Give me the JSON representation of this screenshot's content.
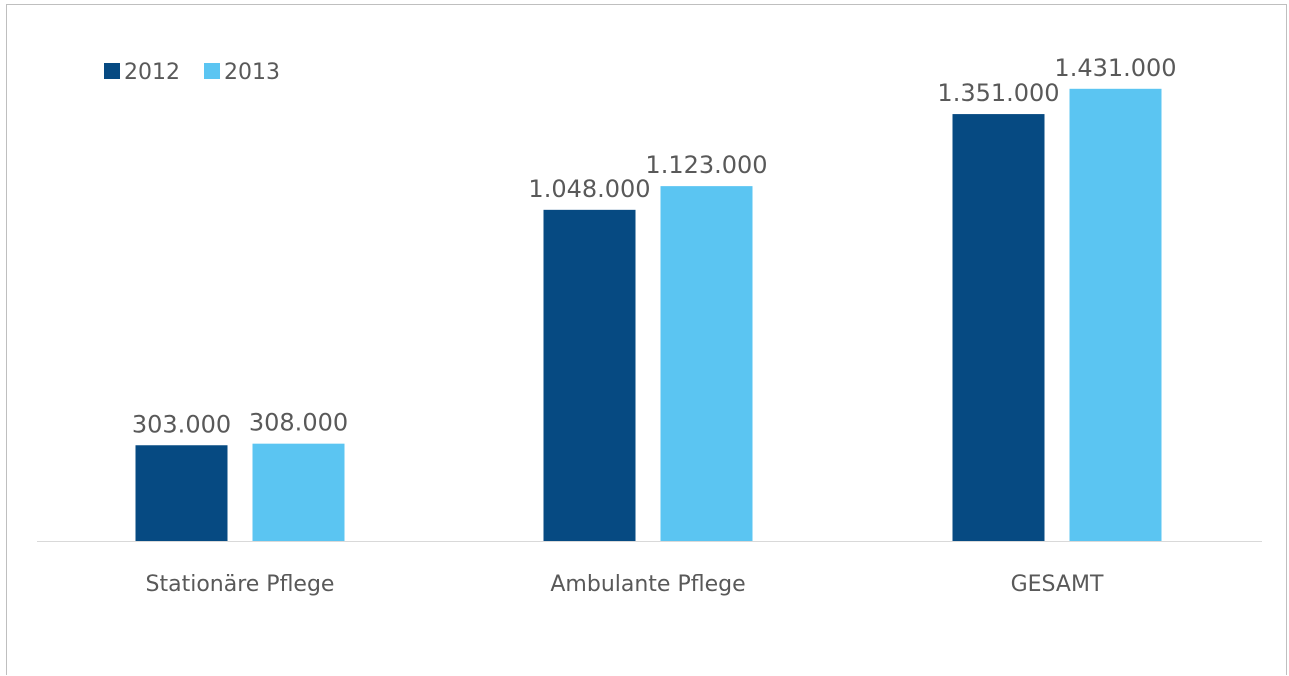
{
  "chart_data": {
    "type": "bar",
    "categories": [
      "Stationäre Pflege",
      "Ambulante Pflege",
      "GESAMT"
    ],
    "series": [
      {
        "name": "2012",
        "values": [
          303000,
          1048000,
          1351000
        ],
        "labels": [
          "303.000",
          "1.048.000",
          "1.351.000"
        ],
        "color": "#064a82"
      },
      {
        "name": "2013",
        "values": [
          308000,
          1123000,
          1431000
        ],
        "labels": [
          "308.000",
          "1.123.000",
          "1.431.000"
        ],
        "color": "#5bc5f2"
      }
    ],
    "title": "",
    "xlabel": "",
    "ylabel": "",
    "ylim": [
      0,
      1500000
    ],
    "grid": false,
    "legend_position": "top-left",
    "axis_color": "#d9d9d9",
    "text_color": "#595959"
  }
}
